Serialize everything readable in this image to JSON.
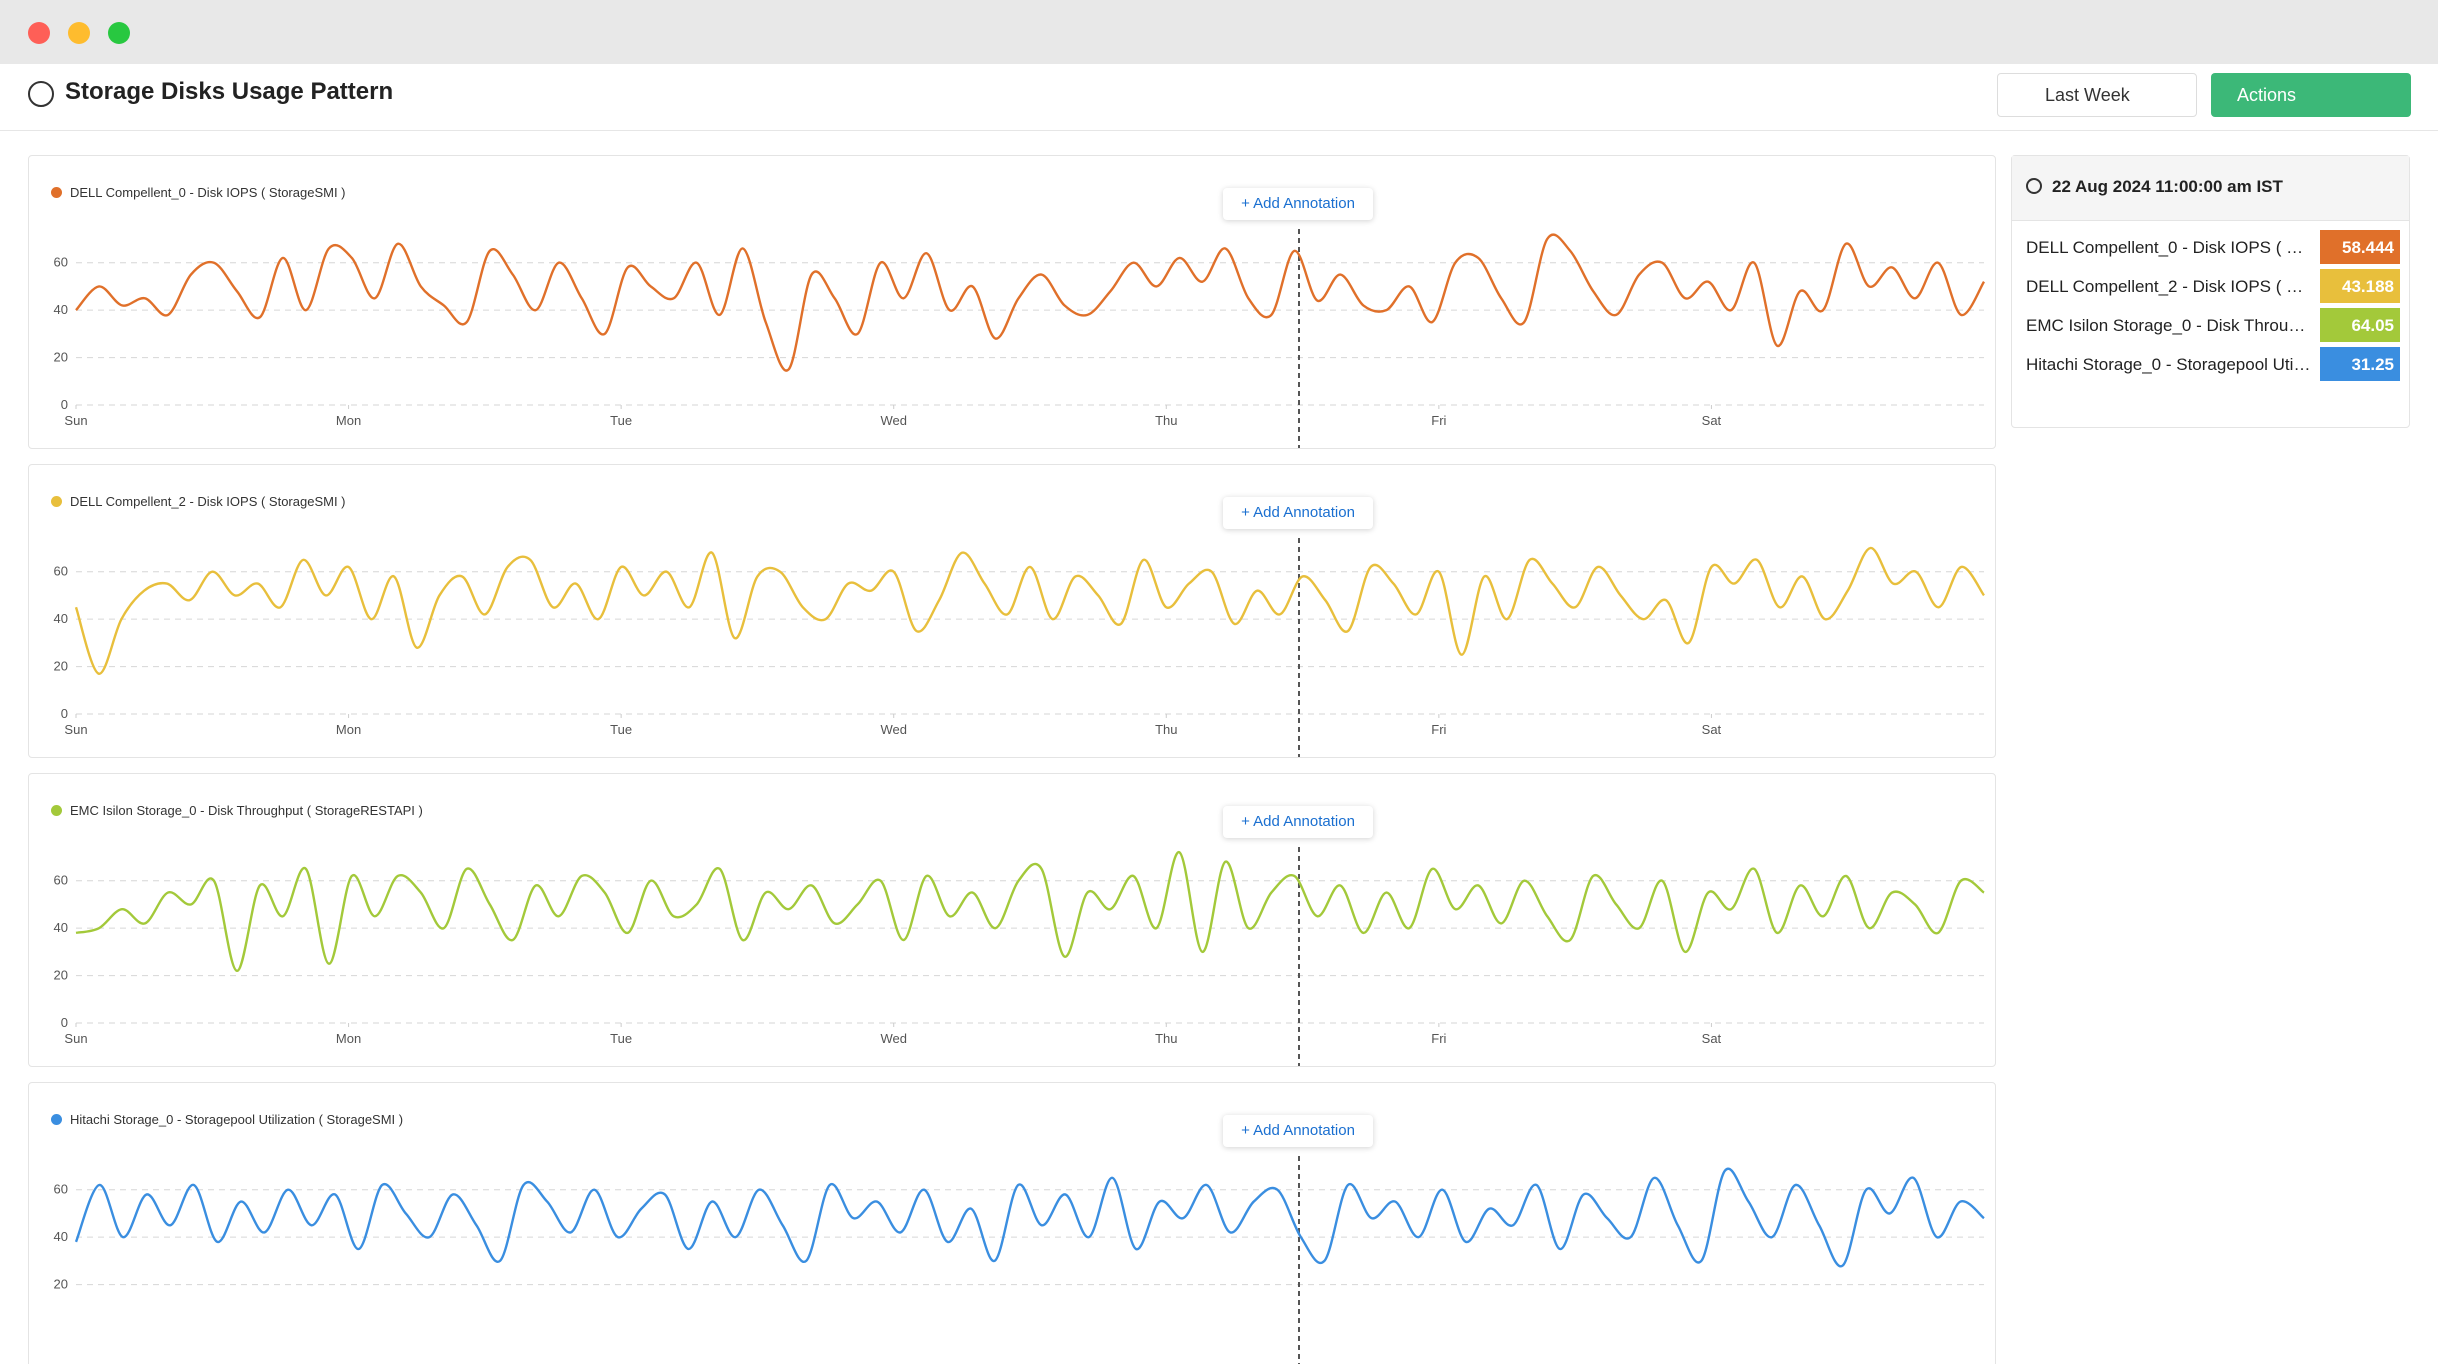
{
  "header": {
    "title": "Storage Disks Usage Pattern",
    "range": "Last Week",
    "actions": "Actions"
  },
  "annotation_button": "+ Add Annotation",
  "cursor": {
    "time": "22 Aug 2024 11:00:00 am IST",
    "values": [
      58.444,
      43.188,
      64.05,
      31.25
    ]
  },
  "chart_data": [
    {
      "type": "line",
      "xlim": [
        0,
        7
      ],
      "xticks": [
        {
          "value": 0,
          "label": "Sun"
        },
        {
          "value": 1,
          "label": "Mon"
        },
        {
          "value": 2,
          "label": "Tue"
        },
        {
          "value": 3,
          "label": "Wed"
        },
        {
          "value": 4,
          "label": "Thu"
        },
        {
          "value": 5,
          "label": "Fri"
        },
        {
          "value": 6,
          "label": "Sat"
        }
      ],
      "ylim": [
        0,
        70
      ],
      "yticks": [
        0,
        20,
        40,
        60
      ],
      "grid": true,
      "series": [
        {
          "name": "DELL Compellent_0 - Disk IOPS ( StorageSMI )",
          "color": "#e0702a",
          "values": [
            40,
            50,
            42,
            45,
            38,
            55,
            60,
            48,
            37,
            62,
            40,
            66,
            62,
            45,
            68,
            50,
            42,
            35,
            65,
            55,
            40,
            60,
            45,
            30,
            58,
            50,
            45,
            60,
            38,
            66,
            35,
            15,
            55,
            45,
            30,
            60,
            45,
            64,
            40,
            50,
            28,
            45,
            55,
            42,
            38,
            48,
            60,
            50,
            62,
            52,
            66,
            45,
            38,
            65,
            44,
            55,
            42,
            40,
            50,
            35,
            60,
            62,
            45,
            35,
            70,
            65,
            48,
            38,
            55,
            60,
            45,
            52,
            40,
            60,
            25,
            48,
            40,
            68,
            50,
            58,
            45,
            60,
            38,
            52
          ]
        }
      ]
    },
    {
      "type": "line",
      "xlim": [
        0,
        7
      ],
      "xticks": [
        {
          "value": 0,
          "label": "Sun"
        },
        {
          "value": 1,
          "label": "Mon"
        },
        {
          "value": 2,
          "label": "Tue"
        },
        {
          "value": 3,
          "label": "Wed"
        },
        {
          "value": 4,
          "label": "Thu"
        },
        {
          "value": 5,
          "label": "Fri"
        },
        {
          "value": 6,
          "label": "Sat"
        }
      ],
      "ylim": [
        0,
        70
      ],
      "yticks": [
        0,
        20,
        40,
        60
      ],
      "grid": true,
      "series": [
        {
          "name": "DELL Compellent_2 - Disk IOPS ( StorageSMI )",
          "color": "#e8bf3c",
          "values": [
            45,
            17,
            40,
            52,
            55,
            48,
            60,
            50,
            55,
            45,
            65,
            50,
            62,
            40,
            58,
            28,
            50,
            58,
            42,
            62,
            65,
            45,
            55,
            40,
            62,
            50,
            60,
            45,
            68,
            32,
            58,
            60,
            45,
            40,
            55,
            52,
            60,
            35,
            48,
            68,
            55,
            42,
            62,
            40,
            58,
            50,
            38,
            65,
            45,
            55,
            60,
            38,
            52,
            42,
            58,
            48,
            35,
            62,
            55,
            42,
            60,
            25,
            58,
            40,
            65,
            55,
            45,
            62,
            50,
            40,
            48,
            30,
            62,
            55,
            65,
            45,
            58,
            40,
            52,
            70,
            55,
            60,
            45,
            62,
            50
          ]
        }
      ]
    },
    {
      "type": "line",
      "xlim": [
        0,
        7
      ],
      "xticks": [
        {
          "value": 0,
          "label": "Sun"
        },
        {
          "value": 1,
          "label": "Mon"
        },
        {
          "value": 2,
          "label": "Tue"
        },
        {
          "value": 3,
          "label": "Wed"
        },
        {
          "value": 4,
          "label": "Thu"
        },
        {
          "value": 5,
          "label": "Fri"
        },
        {
          "value": 6,
          "label": "Sat"
        }
      ],
      "ylim": [
        0,
        70
      ],
      "yticks": [
        0,
        20,
        40,
        60
      ],
      "grid": true,
      "series": [
        {
          "name": "EMC Isilon Storage_0 - Disk Throughput ( StorageRESTAPI )",
          "color": "#a3c93a",
          "values": [
            38,
            40,
            48,
            42,
            55,
            50,
            60,
            22,
            58,
            45,
            65,
            25,
            62,
            45,
            62,
            55,
            40,
            65,
            50,
            35,
            58,
            45,
            62,
            55,
            38,
            60,
            45,
            50,
            65,
            35,
            55,
            48,
            58,
            42,
            50,
            60,
            35,
            62,
            45,
            55,
            40,
            60,
            65,
            28,
            55,
            48,
            62,
            40,
            72,
            30,
            68,
            40,
            55,
            62,
            45,
            58,
            38,
            55,
            40,
            65,
            48,
            58,
            42,
            60,
            45,
            35,
            62,
            50,
            40,
            60,
            30,
            55,
            48,
            65,
            38,
            58,
            45,
            62,
            40,
            55,
            50,
            38,
            60,
            55
          ]
        }
      ]
    },
    {
      "type": "line",
      "xlim": [
        0,
        7
      ],
      "ylim": [
        0,
        70
      ],
      "yticks": [
        20,
        40,
        60
      ],
      "grid": true,
      "series": [
        {
          "name": "Hitachi Storage_0 - Storagepool Utilization ( StorageSMI )",
          "color": "#3a8ee0",
          "values": [
            38,
            62,
            40,
            58,
            45,
            62,
            38,
            55,
            42,
            60,
            45,
            58,
            35,
            62,
            50,
            40,
            58,
            45,
            30,
            62,
            55,
            42,
            60,
            40,
            52,
            58,
            35,
            55,
            40,
            60,
            45,
            30,
            62,
            48,
            55,
            42,
            60,
            38,
            52,
            30,
            62,
            45,
            58,
            40,
            65,
            35,
            55,
            48,
            62,
            42,
            55,
            60,
            40,
            30,
            62,
            48,
            55,
            40,
            60,
            38,
            52,
            45,
            62,
            35,
            58,
            48,
            40,
            65,
            45,
            30,
            68,
            55,
            40,
            62,
            45,
            28,
            60,
            50,
            65,
            40,
            55,
            48
          ]
        }
      ]
    }
  ]
}
